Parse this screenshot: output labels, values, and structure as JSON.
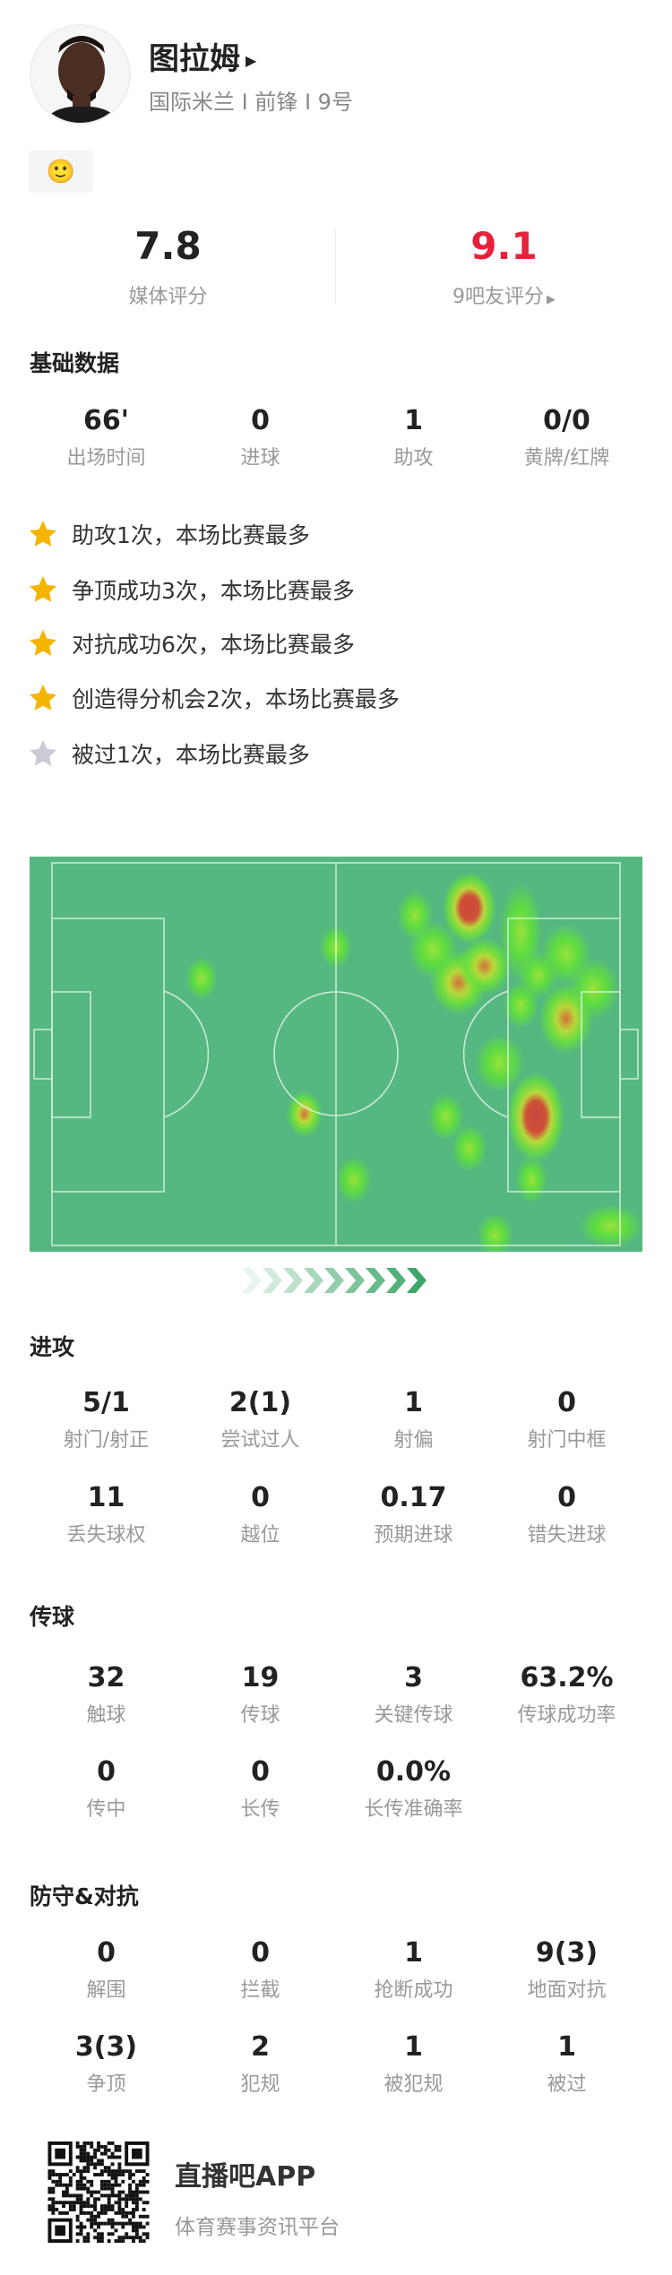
{
  "player": {
    "name": "图拉姆",
    "team": "国际米兰",
    "position": "前锋",
    "number": "9号",
    "subtitle": "国际米兰 I 前锋 I 9号",
    "badge_icon": "emoji-sticker"
  },
  "ratings": {
    "media": {
      "value": "7.8",
      "label": "媒体评分"
    },
    "fans": {
      "value": "9.1",
      "label": "9吧友评分",
      "color": "#e8213a"
    }
  },
  "basic": {
    "title": "基础数据",
    "stats": [
      {
        "value": "66'",
        "label": "出场时间"
      },
      {
        "value": "0",
        "label": "进球"
      },
      {
        "value": "1",
        "label": "助攻"
      },
      {
        "value": "0/0",
        "label": "黄牌/红牌"
      }
    ]
  },
  "highlights": [
    {
      "text": "助攻1次，本场比赛最多",
      "star": "gold"
    },
    {
      "text": "争顶成功3次，本场比赛最多",
      "star": "gold"
    },
    {
      "text": "对抗成功6次，本场比赛最多",
      "star": "gold"
    },
    {
      "text": "创造得分机会2次，本场比赛最多",
      "star": "gold"
    },
    {
      "text": "被过1次，本场比赛最多",
      "star": "gray"
    }
  ],
  "heatmap": {
    "pitch_color": "#55b880",
    "attack_direction": "right"
  },
  "attack": {
    "title": "进攻",
    "stats": [
      {
        "value": "5/1",
        "label": "射门/射正"
      },
      {
        "value": "2(1)",
        "label": "尝试过人"
      },
      {
        "value": "1",
        "label": "射偏"
      },
      {
        "value": "0",
        "label": "射门中框"
      },
      {
        "value": "11",
        "label": "丢失球权"
      },
      {
        "value": "0",
        "label": "越位"
      },
      {
        "value": "0.17",
        "label": "预期进球"
      },
      {
        "value": "0",
        "label": "错失进球"
      }
    ]
  },
  "passing": {
    "title": "传球",
    "stats": [
      {
        "value": "32",
        "label": "触球"
      },
      {
        "value": "19",
        "label": "传球"
      },
      {
        "value": "3",
        "label": "关键传球"
      },
      {
        "value": "63.2%",
        "label": "传球成功率"
      },
      {
        "value": "0",
        "label": "传中"
      },
      {
        "value": "0",
        "label": "长传"
      },
      {
        "value": "0.0%",
        "label": "长传准确率"
      }
    ]
  },
  "defense": {
    "title": "防守&对抗",
    "stats": [
      {
        "value": "0",
        "label": "解围"
      },
      {
        "value": "0",
        "label": "拦截"
      },
      {
        "value": "1",
        "label": "抢断成功"
      },
      {
        "value": "9(3)",
        "label": "地面对抗"
      },
      {
        "value": "3(3)",
        "label": "争顶"
      },
      {
        "value": "2",
        "label": "犯规"
      },
      {
        "value": "1",
        "label": "被犯规"
      },
      {
        "value": "1",
        "label": "被过"
      }
    ]
  },
  "footer": {
    "app_name": "直播吧APP",
    "tagline": "体育赛事资讯平台"
  }
}
